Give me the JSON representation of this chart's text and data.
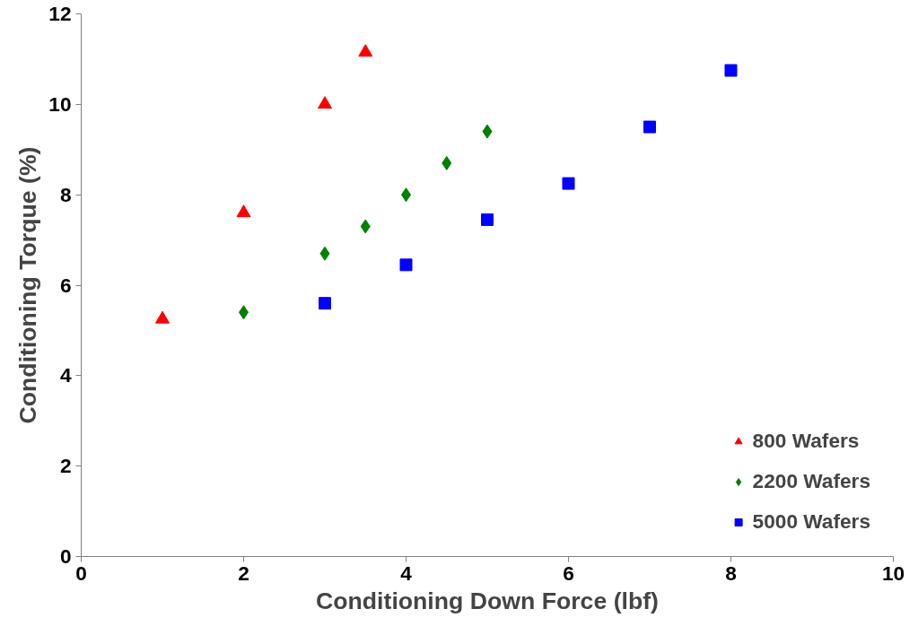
{
  "chart_data": {
    "type": "scatter",
    "xlabel": "Conditioning Down Force (lbf)",
    "ylabel": "Conditioning Torque (%)",
    "xlim": [
      0,
      10
    ],
    "xticks": [
      0,
      2,
      4,
      6,
      8,
      10
    ],
    "ylim": [
      0,
      12
    ],
    "yticks": [
      0,
      2,
      4,
      6,
      8,
      10,
      12
    ],
    "grid": false,
    "legend": "bottom right",
    "series": [
      {
        "name": "800 Wafers",
        "color": "#ff0000",
        "marker": "triangle",
        "x": [
          1,
          2,
          3,
          3.5
        ],
        "values": [
          5.25,
          7.6,
          10.0,
          11.15
        ]
      },
      {
        "name": "2200 Wafers",
        "color": "#008000",
        "marker": "diamond",
        "x": [
          2,
          3,
          3.5,
          4,
          4.5,
          5
        ],
        "values": [
          5.4,
          6.7,
          7.3,
          8.0,
          8.7,
          9.4
        ]
      },
      {
        "name": "5000 Wafers",
        "color": "#0000ff",
        "marker": "square",
        "x": [
          3,
          4,
          5,
          6,
          7,
          8
        ],
        "values": [
          5.6,
          6.45,
          7.45,
          8.25,
          9.5,
          10.75
        ]
      }
    ]
  }
}
